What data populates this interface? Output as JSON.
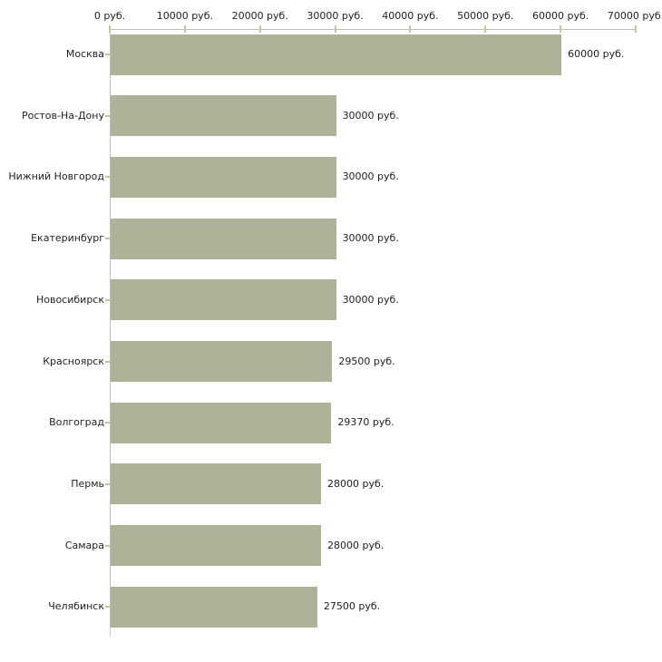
{
  "chart_data": {
    "type": "bar",
    "orientation": "horizontal",
    "title": "",
    "xlabel": "",
    "ylabel": "",
    "xlim": [
      0,
      70000
    ],
    "grid": false,
    "legend": null,
    "categories": [
      "Москва",
      "Ростов-На-Дону",
      "Нижний Новгород",
      "Екатеринбург",
      "Новосибирск",
      "Красноярск",
      "Волгоград",
      "Пермь",
      "Самара",
      "Челябинск"
    ],
    "values": [
      60000,
      30000,
      30000,
      30000,
      30000,
      29500,
      29370,
      28000,
      28000,
      27500
    ],
    "value_labels": [
      "60000 руб.",
      "30000 руб.",
      "30000 руб.",
      "30000 руб.",
      "30000 руб.",
      "29500 руб.",
      "29370 руб.",
      "28000 руб.",
      "28000 руб.",
      "27500 руб."
    ],
    "x_ticks": [
      0,
      10000,
      20000,
      30000,
      40000,
      50000,
      60000,
      70000
    ],
    "x_tick_labels": [
      "0 руб.",
      "10000 руб.",
      "20000 руб.",
      "30000 руб.",
      "40000 руб.",
      "50000 руб.",
      "60000 руб.",
      "70000 руб."
    ],
    "colors": {
      "bar_fill": "#adb399",
      "axis_line": "#c0c0c0",
      "tick_mark": "#c3c89a",
      "text": "#222222",
      "background": "#ffffff"
    }
  }
}
